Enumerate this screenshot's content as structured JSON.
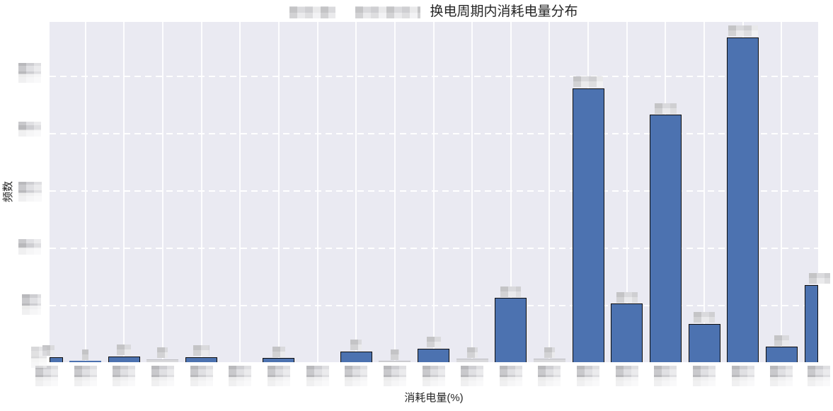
{
  "title": {
    "text": "换电周期内消耗电量分布",
    "redacted_prefix_segments": 2,
    "redaction_note": "two pixelated gray blocks precede the title text"
  },
  "axes": {
    "x_label": "消耗电量(%)",
    "y_label": "频数",
    "x_tick_labels": "redacted (21 blurred mosaic blocks, one per bin)",
    "y_tick_labels": "redacted (6 blurred mosaic blocks at gridline levels)"
  },
  "colors": {
    "bar_fill": "#4C72B0",
    "bar_edge": "#0E0E0E",
    "plot_background": "#EAEAF2",
    "grid": "#FFFFFF",
    "text": "#262626",
    "redaction_gray": "#D6D6DA"
  },
  "chart_data": {
    "type": "bar",
    "title": "换电周期内消耗电量分布",
    "xlabel": "消耗电量(%)",
    "ylabel": "频数",
    "legend": "none",
    "grid": "horizontal dashed white lines, vertical solid white lines at each bin center",
    "n_bins": 21,
    "tick_labels_visible": false,
    "value_scale_note": "estimated relative frequencies; 100 units = one horizontal gridline interval (actual tick numbers are blurred in source)",
    "ylim": [
      0,
      594
    ],
    "values_est_rel": [
      9,
      2,
      10,
      5,
      9,
      0,
      7,
      0,
      19,
      2,
      24,
      6,
      112,
      6,
      478,
      102,
      432,
      67,
      567,
      27,
      135
    ],
    "bar_styles": [
      "blue",
      "blue",
      "blue",
      "gray",
      "blue",
      null,
      "blue",
      null,
      "blue",
      "gray",
      "blue",
      "gray",
      "blue",
      "gray",
      "blue",
      "blue",
      "blue",
      "blue",
      "blue",
      "blue",
      "blue"
    ],
    "value_label_blurred": [
      true,
      true,
      true,
      true,
      true,
      false,
      true,
      false,
      true,
      true,
      true,
      true,
      true,
      true,
      true,
      true,
      true,
      true,
      true,
      true,
      true
    ]
  }
}
